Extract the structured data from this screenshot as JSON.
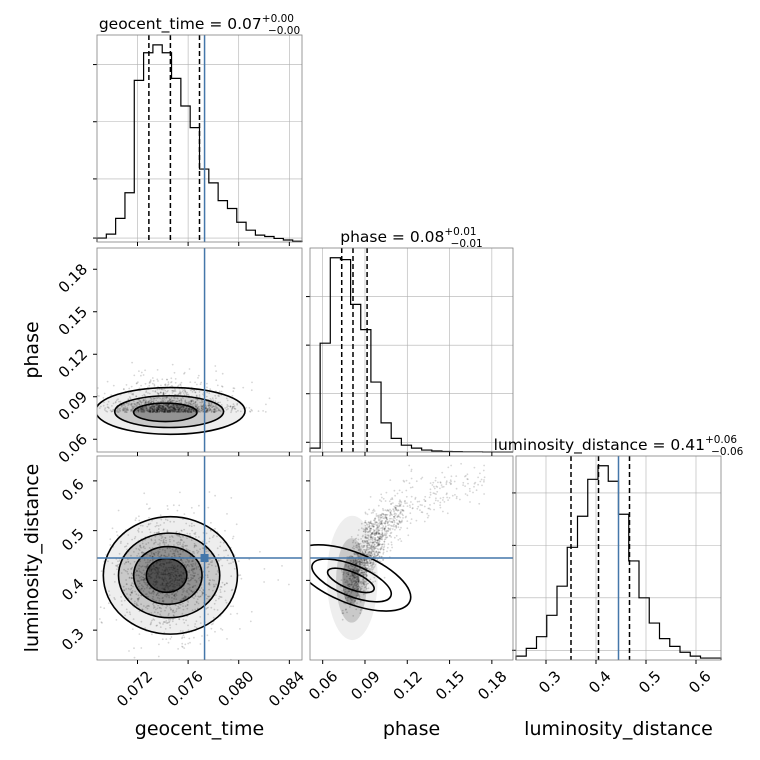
{
  "chart_data": {
    "type": "corner",
    "parameters": [
      "geocent_time",
      "phase",
      "luminosity_distance"
    ],
    "truth": {
      "geocent_time": 0.0773,
      "phase": null,
      "luminosity_distance": 0.445
    },
    "colors": {
      "truth": "#4477aa",
      "hist": "#000000",
      "grid": "#b0b0b0"
    },
    "grid": true,
    "diagonal": [
      {
        "param": "geocent_time",
        "title_prefix": "geocent_time = 0.07",
        "title_sup": "+0.00",
        "title_sub": "−0.00",
        "range": [
          0.0688,
          0.085
        ],
        "ymax": 1.0,
        "quantiles": [
          0.0729,
          0.0746,
          0.0769
        ],
        "heights": [
          0.02,
          0.04,
          0.12,
          0.25,
          0.82,
          0.96,
          1.0,
          0.96,
          0.83,
          0.69,
          0.58,
          0.37,
          0.3,
          0.21,
          0.17,
          0.1,
          0.06,
          0.035,
          0.028,
          0.018,
          0.01,
          0.004
        ],
        "xlabel": "geocent_time",
        "xticks": [
          0.072,
          0.076,
          0.08,
          0.084
        ],
        "xticklabels": [
          "0.072",
          "0.076",
          "0.080",
          "0.084"
        ],
        "yticks": [
          0.02,
          0.32,
          0.61,
          0.9
        ]
      },
      {
        "param": "phase",
        "title_prefix": "phase = 0.08",
        "title_sup": "+0.01",
        "title_sub": "−0.01",
        "range": [
          0.051,
          0.195
        ],
        "ymax": 1.0,
        "quantiles": [
          0.0735,
          0.0815,
          0.0915
        ],
        "heights": [
          0.02,
          0.56,
          1.0,
          0.99,
          0.76,
          0.63,
          0.36,
          0.15,
          0.07,
          0.035,
          0.02,
          0.01,
          0.005,
          0.003,
          0.002,
          0.001,
          0.001,
          0.0,
          0.0,
          0.0
        ],
        "xlabel": "phase",
        "xticks": [
          0.06,
          0.09,
          0.12,
          0.15,
          0.18
        ],
        "xticklabels": [
          "0.06",
          "0.09",
          "0.12",
          "0.15",
          "0.18"
        ],
        "yticks": [
          0.05,
          0.3,
          0.55,
          0.8
        ]
      },
      {
        "param": "luminosity_distance",
        "title_prefix": "luminosity_distance = 0.41",
        "title_sup": "+0.06",
        "title_sub": "−0.06",
        "range": [
          0.24,
          0.65
        ],
        "ymax": 1.0,
        "quantiles": [
          0.35,
          0.405,
          0.467
        ],
        "heights": [
          0.02,
          0.06,
          0.12,
          0.23,
          0.38,
          0.58,
          0.74,
          0.93,
          1.0,
          0.92,
          0.75,
          0.51,
          0.32,
          0.19,
          0.11,
          0.07,
          0.04,
          0.02,
          0.01,
          0.01
        ],
        "xlabel": "luminosity_distance",
        "xticks": [
          0.3,
          0.4,
          0.5,
          0.6
        ],
        "xticklabels": [
          "0.3",
          "0.4",
          "0.5",
          "0.6"
        ],
        "yticks": [
          0.05,
          0.32,
          0.59,
          0.86
        ]
      }
    ],
    "offdiagonal": [
      {
        "x": "geocent_time",
        "y": "phase",
        "xrange": [
          0.0688,
          0.085
        ],
        "yrange": [
          0.051,
          0.195
        ],
        "ylabel": "phase",
        "yticks": [
          0.06,
          0.09,
          0.12,
          0.15,
          0.18
        ],
        "yticklabels": [
          "0.06",
          "0.09",
          "0.12",
          "0.15",
          "0.18"
        ],
        "center": [
          0.0745,
          0.079
        ],
        "spread": [
          0.0019,
          0.0065
        ],
        "correlation": 0.15,
        "contour_levels": [
          {
            "cx": 0.0746,
            "cy": 0.08,
            "rx": 0.0059,
            "ry": 0.0165,
            "rot": 0
          },
          {
            "cx": 0.0745,
            "cy": 0.0795,
            "rx": 0.0043,
            "ry": 0.0112,
            "rot": 0
          },
          {
            "cx": 0.0742,
            "cy": 0.079,
            "rx": 0.0025,
            "ry": 0.0065,
            "rot": 0
          }
        ]
      },
      {
        "x": "geocent_time",
        "y": "luminosity_distance",
        "xrange": [
          0.0688,
          0.085
        ],
        "yrange": [
          0.24,
          0.65
        ],
        "ylabel": "luminosity_distance",
        "yticks": [
          0.3,
          0.4,
          0.5,
          0.6
        ],
        "yticklabels": [
          "0.3",
          "0.4",
          "0.5",
          "0.6"
        ],
        "center": [
          0.0745,
          0.41
        ],
        "spread": [
          0.0019,
          0.055
        ],
        "correlation": 0.0,
        "contour_levels": [
          {
            "cx": 0.0746,
            "cy": 0.41,
            "rx": 0.0053,
            "ry": 0.118,
            "rot": 0
          },
          {
            "cx": 0.0745,
            "cy": 0.41,
            "rx": 0.004,
            "ry": 0.085,
            "rot": 0
          },
          {
            "cx": 0.0744,
            "cy": 0.41,
            "rx": 0.0027,
            "ry": 0.058,
            "rot": 0
          },
          {
            "cx": 0.0743,
            "cy": 0.41,
            "rx": 0.0016,
            "ry": 0.034,
            "rot": 0
          }
        ]
      },
      {
        "x": "phase",
        "y": "luminosity_distance",
        "xrange": [
          0.051,
          0.195
        ],
        "yrange": [
          0.24,
          0.65
        ],
        "center": [
          0.08,
          0.4
        ],
        "spread": [
          0.01,
          0.055
        ],
        "correlation": 0.82,
        "contour_levels": [
          {
            "cx": 0.081,
            "cy": 0.405,
            "rx": 0.018,
            "ry": 0.125,
            "rot": 0
          },
          {
            "cx": 0.0805,
            "cy": 0.4,
            "rx": 0.011,
            "ry": 0.085,
            "rot": 0
          },
          {
            "cx": 0.08,
            "cy": 0.4,
            "rx": 0.006,
            "ry": 0.05,
            "rot": 0
          }
        ]
      }
    ]
  }
}
